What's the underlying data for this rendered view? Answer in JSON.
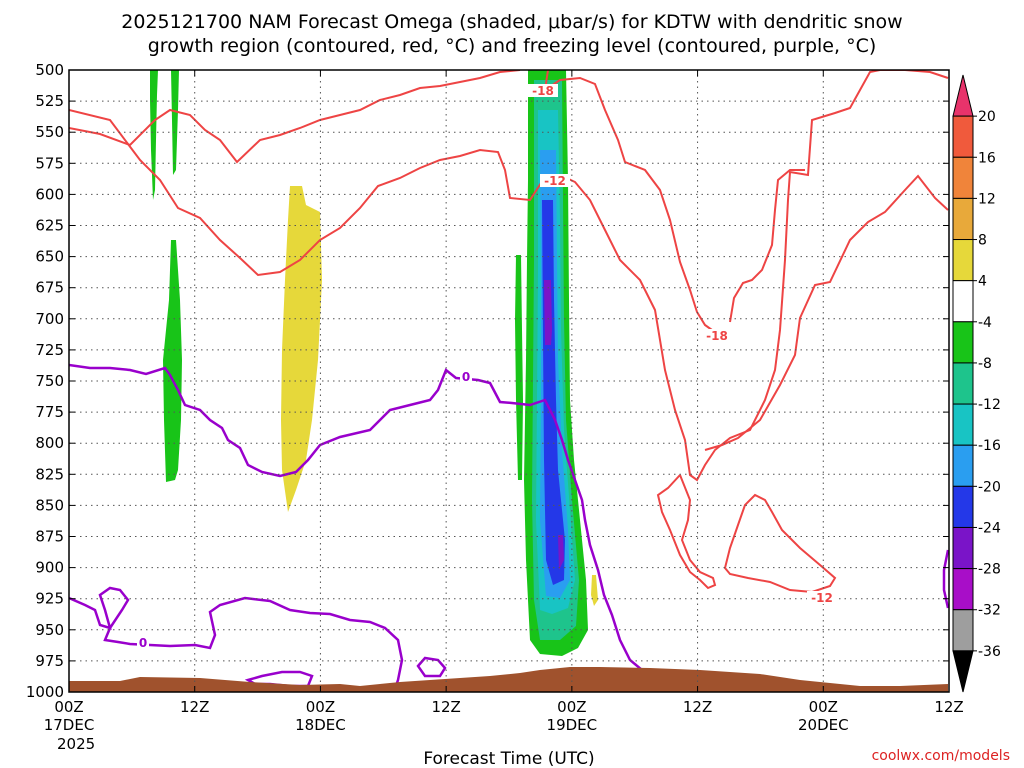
{
  "chart_data": {
    "type": "contour",
    "title_line1": "2025121700 NAM Forecast Omega (shaded, μbar/s) for KDTW with dendritic snow",
    "title_line2": "growth region (contoured, red, °C) and freezing level (contoured, purple, °C)",
    "xlabel": "Forecast Time (UTC)",
    "credit": "coolwx.com/models",
    "y_axis": {
      "range": [
        500,
        1000
      ],
      "ticks": [
        500,
        525,
        550,
        575,
        600,
        625,
        650,
        675,
        700,
        725,
        750,
        775,
        800,
        825,
        850,
        875,
        900,
        925,
        950,
        975,
        1000
      ]
    },
    "x_axis": {
      "range_hours": [
        0,
        84
      ],
      "ticks": [
        {
          "hour": 0,
          "line1": "00Z",
          "line2": "17DEC",
          "line3": "2025"
        },
        {
          "hour": 12,
          "line1": "12Z",
          "line2": "",
          "line3": ""
        },
        {
          "hour": 24,
          "line1": "00Z",
          "line2": "18DEC",
          "line3": ""
        },
        {
          "hour": 36,
          "line1": "12Z",
          "line2": "",
          "line3": ""
        },
        {
          "hour": 48,
          "line1": "00Z",
          "line2": "19DEC",
          "line3": ""
        },
        {
          "hour": 60,
          "line1": "12Z",
          "line2": "",
          "line3": ""
        },
        {
          "hour": 72,
          "line1": "00Z",
          "line2": "20DEC",
          "line3": ""
        },
        {
          "hour": 84,
          "line1": "12Z",
          "line2": "",
          "line3": ""
        }
      ]
    },
    "colorbar": {
      "labels": [
        "20",
        "16",
        "12",
        "8",
        "4",
        "-4",
        "-8",
        "-12",
        "-16",
        "-20",
        "-24",
        "-28",
        "-32",
        "-36"
      ],
      "colors": [
        "#e8336b",
        "#f05a3c",
        "#f0843a",
        "#e8a93a",
        "#e6d83a",
        "#ffffff",
        "#18c418",
        "#1ec48c",
        "#18c4c4",
        "#2a9ef0",
        "#2438e8",
        "#7a14c8",
        "#a80ec8",
        "#9e9e9e",
        "#000000"
      ]
    },
    "contour_labels": {
      "red": [
        "-18",
        "-12",
        "-18",
        "-12"
      ],
      "purple": [
        "0",
        "0"
      ]
    },
    "colors": {
      "red_contour": "#ee4444",
      "purple_contour": "#9900cc",
      "terrain": "#a0522d"
    }
  }
}
